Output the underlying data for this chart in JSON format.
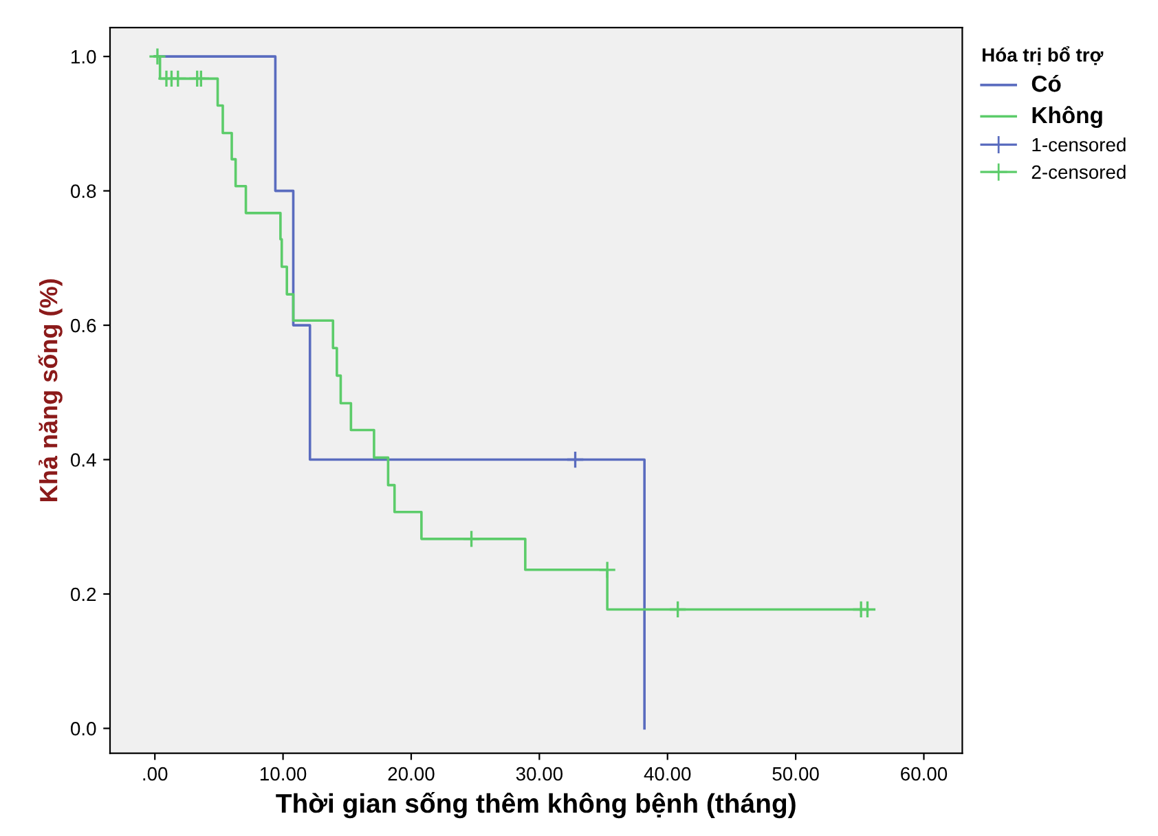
{
  "chart_data": {
    "type": "step",
    "xlabel": "Thời gian sống thêm không bệnh (tháng)",
    "ylabel": "Khả năng sống (%)",
    "legend_title": "Hóa trị bổ trợ",
    "xlim": [
      -3.5,
      63
    ],
    "ylim": [
      -0.037,
      1.043
    ],
    "xticks": [
      {
        "value": 0,
        "label": ".00"
      },
      {
        "value": 10,
        "label": "10.00"
      },
      {
        "value": 20,
        "label": "20.00"
      },
      {
        "value": 30,
        "label": "30.00"
      },
      {
        "value": 40,
        "label": "40.00"
      },
      {
        "value": 50,
        "label": "50.00"
      },
      {
        "value": 60,
        "label": "60.00"
      }
    ],
    "yticks": [
      {
        "value": 0,
        "label": "0.0"
      },
      {
        "value": 0.2,
        "label": "0.2"
      },
      {
        "value": 0.4,
        "label": "0.4"
      },
      {
        "value": 0.6,
        "label": "0.6"
      },
      {
        "value": 0.8,
        "label": "0.8"
      },
      {
        "value": 1.0,
        "label": "1.0"
      }
    ],
    "grid": false,
    "legend": "right",
    "series": [
      {
        "name": "Có",
        "color": "#5a6cbf",
        "x": [
          0,
          9.4,
          10.8,
          12.1,
          38.2
        ],
        "values": [
          1.0,
          0.8,
          0.6,
          0.4,
          0.0
        ]
      },
      {
        "name": "Không",
        "color": "#5ccc6a",
        "x": [
          0,
          0.4,
          4.9,
          5.3,
          6.0,
          6.3,
          7.1,
          9.8,
          9.9,
          10.3,
          10.8,
          13.9,
          14.2,
          14.5,
          15.3,
          17.1,
          18.2,
          18.7,
          20.8,
          28.9,
          35.3,
          55.6
        ],
        "values": [
          1.0,
          0.967,
          0.927,
          0.886,
          0.847,
          0.807,
          0.767,
          0.728,
          0.687,
          0.646,
          0.607,
          0.566,
          0.525,
          0.484,
          0.444,
          0.403,
          0.362,
          0.322,
          0.282,
          0.236,
          0.177,
          0.177
        ]
      },
      {
        "name": "1-censored",
        "type": "scatter",
        "marker": "cross",
        "color": "#5a6cbf",
        "x": [
          32.8
        ],
        "values": [
          0.4
        ]
      },
      {
        "name": "2-censored",
        "type": "scatter",
        "marker": "cross",
        "color": "#5ccc6a",
        "x": [
          0.2,
          0.9,
          1.3,
          1.8,
          3.3,
          3.6,
          24.7,
          35.3,
          40.8,
          55.1,
          55.6
        ],
        "values": [
          1.0,
          0.967,
          0.967,
          0.967,
          0.967,
          0.967,
          0.282,
          0.236,
          0.177,
          0.177,
          0.177
        ]
      }
    ]
  }
}
